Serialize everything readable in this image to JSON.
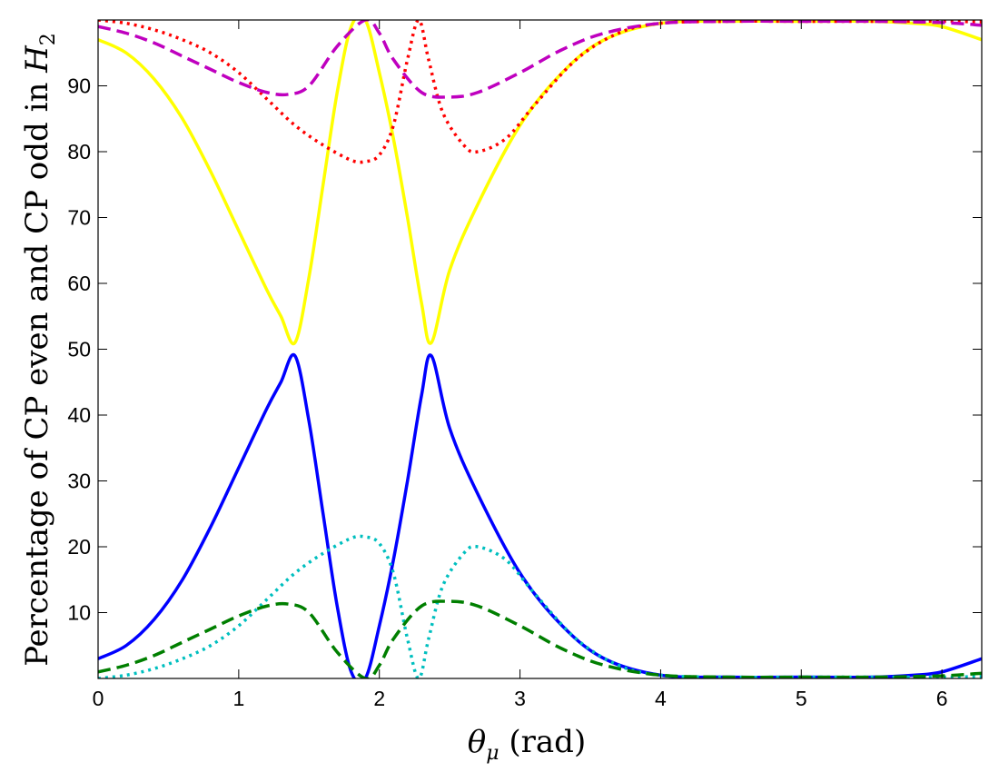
{
  "chart_data": {
    "type": "line",
    "title": "",
    "xlabel_symbol": "θ",
    "xlabel_sub": "μ",
    "xlabel_unit": " (rad)",
    "ylabel_text": "Percentage of CP even and CP odd in ",
    "ylabel_symbol": "H",
    "ylabel_sub": "2",
    "xlim": [
      0,
      6.2832
    ],
    "ylim": [
      0,
      100
    ],
    "xticks": [
      0,
      1,
      2,
      3,
      4,
      5,
      6
    ],
    "yticks": [
      10,
      20,
      30,
      40,
      50,
      60,
      70,
      80,
      90
    ],
    "grid": false,
    "series": [
      {
        "color": "#ffff00",
        "dash": "solid",
        "x": [
          0,
          0.2,
          0.4,
          0.6,
          0.8,
          1.0,
          1.2,
          1.3,
          1.4,
          1.5,
          1.6,
          1.7,
          1.8,
          1.9,
          2.0,
          2.1,
          2.2,
          2.3,
          2.37,
          2.5,
          2.7,
          3.0,
          3.3,
          3.6,
          4.0,
          4.5,
          5.0,
          5.5,
          5.8,
          6.0,
          6.2832
        ],
        "y": [
          97,
          95,
          91,
          85,
          77,
          68,
          59,
          55,
          51,
          61,
          75,
          89,
          99,
          100,
          92,
          82,
          70,
          57,
          51,
          62,
          72,
          84,
          92,
          97,
          99.5,
          99.8,
          99.8,
          99.8,
          99.5,
          99,
          97
        ]
      },
      {
        "color": "#0000ff",
        "dash": "solid",
        "x": [
          0,
          0.2,
          0.4,
          0.6,
          0.8,
          1.0,
          1.2,
          1.3,
          1.4,
          1.5,
          1.6,
          1.7,
          1.8,
          1.9,
          2.0,
          2.1,
          2.2,
          2.3,
          2.37,
          2.5,
          2.7,
          3.0,
          3.3,
          3.6,
          4.0,
          4.5,
          5.0,
          5.5,
          5.8,
          6.0,
          6.2832
        ],
        "y": [
          3,
          5,
          9,
          15,
          23,
          32,
          41,
          45,
          49,
          39,
          25,
          11,
          1,
          0,
          8,
          18,
          30,
          43,
          49,
          38,
          28,
          16,
          8,
          3,
          0.5,
          0.2,
          0.2,
          0.2,
          0.5,
          1,
          3
        ]
      },
      {
        "color": "#ff0000",
        "dash": "dotted",
        "x": [
          0,
          0.2,
          0.4,
          0.6,
          0.8,
          1.0,
          1.2,
          1.4,
          1.6,
          1.8,
          1.9,
          2.0,
          2.1,
          2.2,
          2.28,
          2.35,
          2.45,
          2.6,
          2.7,
          2.9,
          3.1,
          3.4,
          3.7,
          4.0,
          4.5,
          5.0,
          5.5,
          6.0,
          6.2832
        ],
        "y": [
          100,
          99.5,
          98.5,
          97,
          95,
          92,
          88,
          84,
          81,
          78.7,
          78.5,
          79.5,
          84,
          94,
          100,
          94,
          86,
          81,
          80,
          82,
          87,
          94,
          98,
          99.5,
          99.8,
          99.8,
          99.8,
          99.8,
          99.7
        ]
      },
      {
        "color": "#00bfbf",
        "dash": "dotted",
        "x": [
          0,
          0.2,
          0.4,
          0.6,
          0.8,
          1.0,
          1.2,
          1.4,
          1.6,
          1.8,
          1.9,
          2.0,
          2.1,
          2.2,
          2.28,
          2.35,
          2.45,
          2.6,
          2.7,
          2.9,
          3.1,
          3.4,
          3.7,
          4.0,
          4.5,
          5.0,
          5.5,
          6.0,
          6.2832
        ],
        "y": [
          0,
          0.5,
          1.5,
          3,
          5,
          8,
          12,
          16,
          19,
          21.3,
          21.5,
          20.5,
          16,
          6,
          0,
          6,
          14,
          19,
          20,
          18,
          13,
          6,
          2,
          0.5,
          0.2,
          0.2,
          0.2,
          0.2,
          0.3
        ]
      },
      {
        "color": "#bf00bf",
        "dash": "dashed",
        "x": [
          0,
          0.2,
          0.4,
          0.6,
          0.8,
          1.0,
          1.2,
          1.35,
          1.5,
          1.7,
          1.9,
          2.0,
          2.1,
          2.3,
          2.5,
          2.7,
          3.0,
          3.3,
          3.6,
          4.0,
          4.5,
          5.0,
          5.5,
          6.0,
          6.2832
        ],
        "y": [
          99,
          98,
          96.5,
          94.5,
          92.5,
          90.5,
          89,
          88.7,
          90,
          96,
          100,
          98,
          94,
          89,
          88.3,
          89,
          92,
          95.5,
          98,
          99.5,
          99.8,
          99.8,
          99.8,
          99.6,
          99.2
        ]
      },
      {
        "color": "#007f00",
        "dash": "dashed",
        "x": [
          0,
          0.2,
          0.4,
          0.6,
          0.8,
          1.0,
          1.2,
          1.35,
          1.5,
          1.7,
          1.9,
          2.0,
          2.1,
          2.3,
          2.5,
          2.7,
          3.0,
          3.3,
          3.6,
          4.0,
          4.5,
          5.0,
          5.5,
          6.0,
          6.2832
        ],
        "y": [
          1,
          2,
          3.5,
          5.5,
          7.5,
          9.5,
          11,
          11.3,
          10,
          4,
          0,
          2,
          6,
          11,
          11.7,
          11,
          8,
          4.5,
          2,
          0.5,
          0.2,
          0.2,
          0.2,
          0.4,
          0.8
        ]
      }
    ]
  }
}
